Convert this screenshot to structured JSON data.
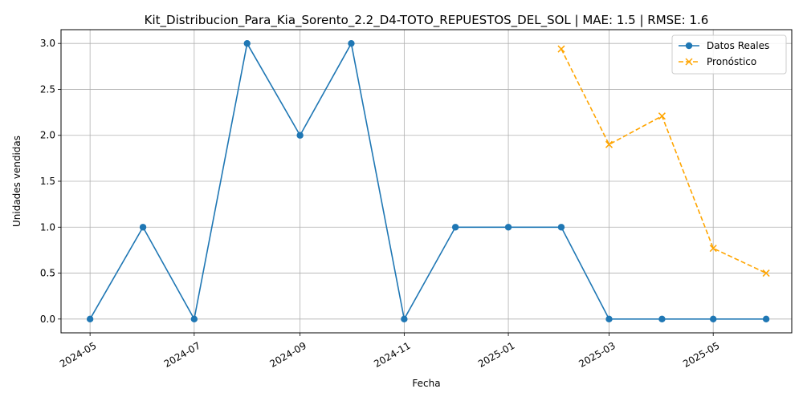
{
  "chart_data": {
    "type": "line",
    "title": "Kit_Distribucion_Para_Kia_Sorento_2.2_D4-TOTO_REPUESTOS_DEL_SOL | MAE: 1.5 | RMSE: 1.6",
    "xlabel": "Fecha",
    "ylabel": "Unidades vendidas",
    "xlim": [
      "2024-04-14",
      "2025-06-16"
    ],
    "ylim": [
      -0.15,
      3.15
    ],
    "x_ticks": [
      "2024-05-01",
      "2024-07-01",
      "2024-09-01",
      "2024-11-01",
      "2025-01-01",
      "2025-03-01",
      "2025-05-01"
    ],
    "x_tick_labels": [
      "2024-05",
      "2024-07",
      "2024-09",
      "2024-11",
      "2025-01",
      "2025-03",
      "2025-05"
    ],
    "y_ticks": [
      0.0,
      0.5,
      1.0,
      1.5,
      2.0,
      2.5,
      3.0
    ],
    "y_tick_labels": [
      "0.0",
      "0.5",
      "1.0",
      "1.5",
      "2.0",
      "2.5",
      "3.0"
    ],
    "grid": true,
    "legend_position": "top-right",
    "series": [
      {
        "name": "Datos Reales",
        "color": "#1f77b4",
        "marker": "circle",
        "linestyle": "solid",
        "x": [
          "2024-05-01",
          "2024-06-01",
          "2024-07-01",
          "2024-08-01",
          "2024-09-01",
          "2024-10-01",
          "2024-11-01",
          "2024-12-01",
          "2025-01-01",
          "2025-02-01",
          "2025-03-01",
          "2025-04-01",
          "2025-05-01",
          "2025-06-01"
        ],
        "y": [
          0,
          1,
          0,
          3,
          2,
          3,
          0,
          1,
          1,
          1,
          0,
          0,
          0,
          0
        ]
      },
      {
        "name": "Pronóstico",
        "color": "#ffa500",
        "marker": "x",
        "linestyle": "dashed",
        "x": [
          "2025-02-01",
          "2025-03-01",
          "2025-04-01",
          "2025-05-01",
          "2025-06-01"
        ],
        "y": [
          2.94,
          1.9,
          2.21,
          0.77,
          0.5
        ]
      }
    ]
  }
}
